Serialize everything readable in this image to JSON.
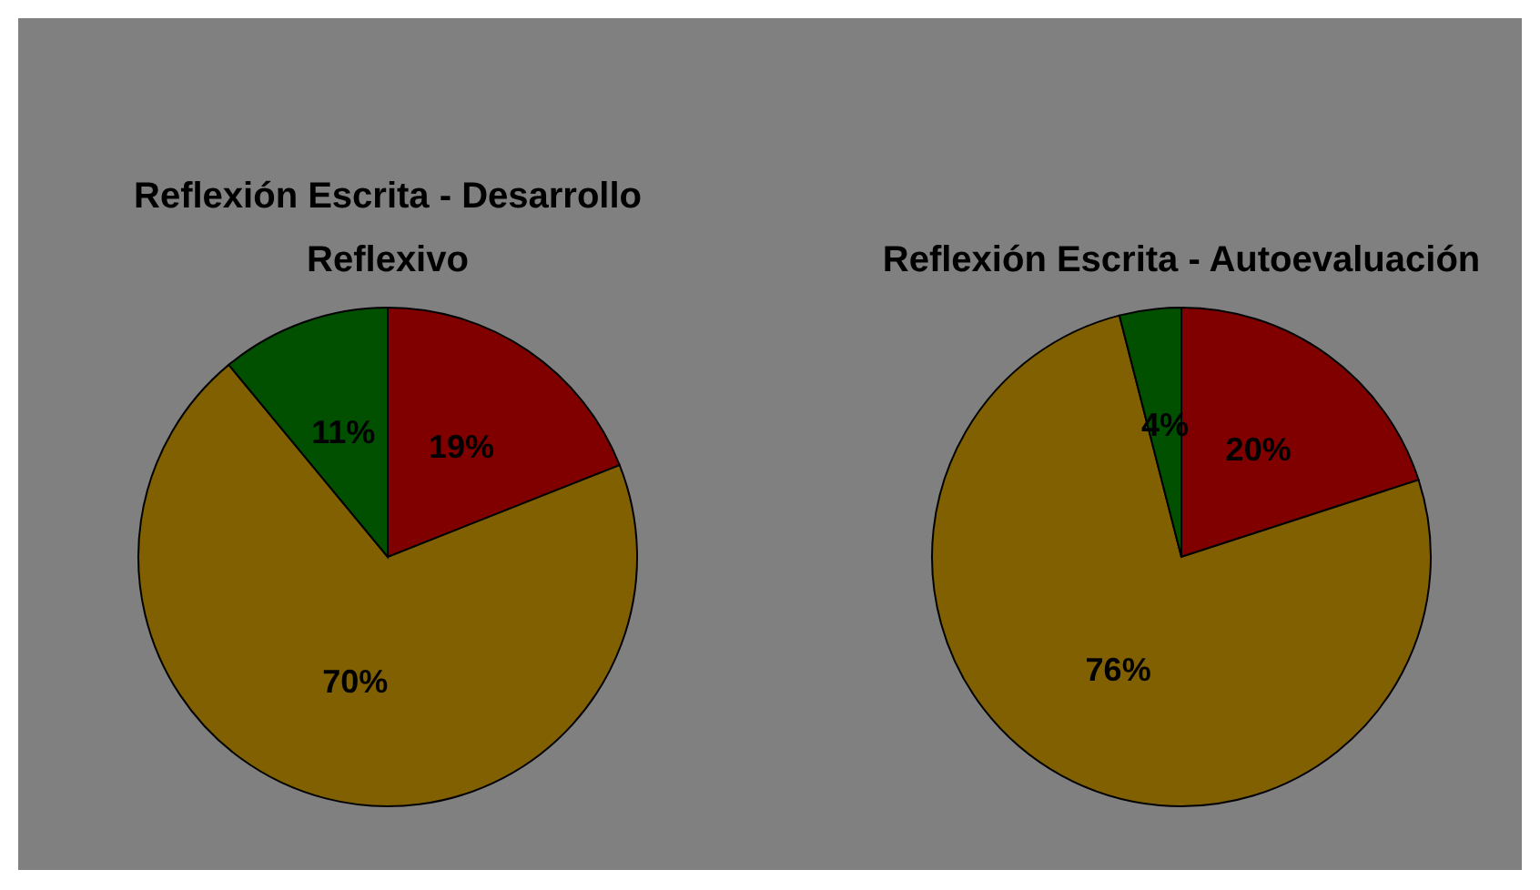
{
  "chart_data": [
    {
      "type": "pie",
      "title": "Reflexión Escrita - Desarrollo Reflexivo",
      "categories": [
        null,
        null,
        null
      ],
      "values": [
        19,
        70,
        11
      ],
      "colors": [
        "#800000",
        "#806000",
        "#005000"
      ],
      "value_labels": [
        "19%",
        "70%",
        "11%"
      ]
    },
    {
      "type": "pie",
      "title": "Reflexión Escrita - Autoevaluación",
      "categories": [
        null,
        null,
        null
      ],
      "values": [
        20,
        76,
        4
      ],
      "colors": [
        "#800000",
        "#806000",
        "#005000"
      ],
      "value_labels": [
        "20%",
        "76%",
        "4%"
      ]
    }
  ]
}
